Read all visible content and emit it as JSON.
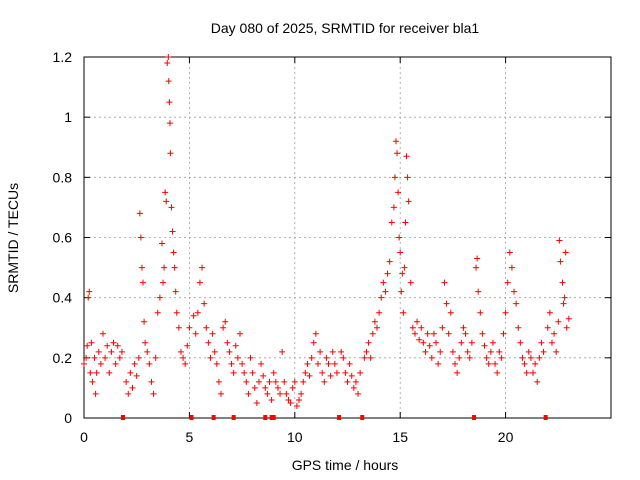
{
  "chart_data": {
    "type": "scatter",
    "title": "Day 080 of 2025, SRMTID for receiver bla1",
    "xlabel": "GPS time / hours",
    "ylabel": "SRMTID / TECUs",
    "xlim": [
      0,
      25
    ],
    "ylim": [
      0,
      1.2
    ],
    "x_ticks": [
      0,
      5,
      10,
      15,
      20
    ],
    "y_ticks": [
      0,
      0.2,
      0.4,
      0.6,
      0.8,
      1,
      1.2
    ],
    "x_tick_labels": [
      "0",
      "5",
      "10",
      "15",
      "20"
    ],
    "y_tick_labels": [
      "0",
      "0.2",
      "0.4",
      "0.6",
      "0.8",
      "1",
      "1.2"
    ],
    "grid": true,
    "marker": "+",
    "color": "#ff0000",
    "baseline_markers_x": [
      1.85,
      5.1,
      6.15,
      7.1,
      8.6,
      8.9,
      9.0,
      12.1,
      13.2,
      18.5,
      21.9
    ],
    "series": [
      {
        "name": "SRMTID",
        "points": [
          [
            0.0,
            0.18
          ],
          [
            0.1,
            0.2
          ],
          [
            0.15,
            0.24
          ],
          [
            0.2,
            0.4
          ],
          [
            0.25,
            0.42
          ],
          [
            0.3,
            0.15
          ],
          [
            0.35,
            0.25
          ],
          [
            0.4,
            0.12
          ],
          [
            0.5,
            0.2
          ],
          [
            0.55,
            0.08
          ],
          [
            0.6,
            0.15
          ],
          [
            0.7,
            0.22
          ],
          [
            0.8,
            0.18
          ],
          [
            0.9,
            0.28
          ],
          [
            1.0,
            0.2
          ],
          [
            1.1,
            0.24
          ],
          [
            1.2,
            0.15
          ],
          [
            1.3,
            0.22
          ],
          [
            1.4,
            0.25
          ],
          [
            1.5,
            0.18
          ],
          [
            1.6,
            0.24
          ],
          [
            1.7,
            0.2
          ],
          [
            1.8,
            0.22
          ],
          [
            2.0,
            0.12
          ],
          [
            2.1,
            0.08
          ],
          [
            2.2,
            0.15
          ],
          [
            2.3,
            0.1
          ],
          [
            2.4,
            0.18
          ],
          [
            2.5,
            0.14
          ],
          [
            2.6,
            0.2
          ],
          [
            2.65,
            0.68
          ],
          [
            2.7,
            0.6
          ],
          [
            2.75,
            0.5
          ],
          [
            2.8,
            0.45
          ],
          [
            2.85,
            0.32
          ],
          [
            2.9,
            0.25
          ],
          [
            3.0,
            0.22
          ],
          [
            3.1,
            0.18
          ],
          [
            3.2,
            0.12
          ],
          [
            3.3,
            0.08
          ],
          [
            3.4,
            0.2
          ],
          [
            3.5,
            0.35
          ],
          [
            3.6,
            0.4
          ],
          [
            3.7,
            0.58
          ],
          [
            3.75,
            0.45
          ],
          [
            3.8,
            0.5
          ],
          [
            3.85,
            0.75
          ],
          [
            3.9,
            0.72
          ],
          [
            3.95,
            1.18
          ],
          [
            4.0,
            1.2
          ],
          [
            4.02,
            1.12
          ],
          [
            4.05,
            1.05
          ],
          [
            4.08,
            0.98
          ],
          [
            4.1,
            0.88
          ],
          [
            4.15,
            0.7
          ],
          [
            4.2,
            0.62
          ],
          [
            4.25,
            0.55
          ],
          [
            4.3,
            0.5
          ],
          [
            4.35,
            0.42
          ],
          [
            4.4,
            0.35
          ],
          [
            4.5,
            0.3
          ],
          [
            4.6,
            0.22
          ],
          [
            4.7,
            0.2
          ],
          [
            4.8,
            0.18
          ],
          [
            4.9,
            0.24
          ],
          [
            5.0,
            0.3
          ],
          [
            5.2,
            0.34
          ],
          [
            5.3,
            0.28
          ],
          [
            5.4,
            0.35
          ],
          [
            5.5,
            0.45
          ],
          [
            5.6,
            0.5
          ],
          [
            5.7,
            0.38
          ],
          [
            5.8,
            0.3
          ],
          [
            5.9,
            0.25
          ],
          [
            6.0,
            0.2
          ],
          [
            6.1,
            0.28
          ],
          [
            6.2,
            0.22
          ],
          [
            6.3,
            0.18
          ],
          [
            6.4,
            0.12
          ],
          [
            6.5,
            0.08
          ],
          [
            6.6,
            0.3
          ],
          [
            6.7,
            0.32
          ],
          [
            6.8,
            0.25
          ],
          [
            6.9,
            0.22
          ],
          [
            7.0,
            0.18
          ],
          [
            7.1,
            0.15
          ],
          [
            7.2,
            0.24
          ],
          [
            7.3,
            0.2
          ],
          [
            7.4,
            0.28
          ],
          [
            7.5,
            0.18
          ],
          [
            7.6,
            0.15
          ],
          [
            7.7,
            0.12
          ],
          [
            7.8,
            0.08
          ],
          [
            7.9,
            0.2
          ],
          [
            8.0,
            0.15
          ],
          [
            8.1,
            0.1
          ],
          [
            8.2,
            0.05
          ],
          [
            8.3,
            0.12
          ],
          [
            8.4,
            0.18
          ],
          [
            8.5,
            0.14
          ],
          [
            8.6,
            0.1
          ],
          [
            8.7,
            0.08
          ],
          [
            8.8,
            0.12
          ],
          [
            8.9,
            0.06
          ],
          [
            9.0,
            0.15
          ],
          [
            9.1,
            0.12
          ],
          [
            9.2,
            0.1
          ],
          [
            9.3,
            0.08
          ],
          [
            9.4,
            0.22
          ],
          [
            9.5,
            0.12
          ],
          [
            9.6,
            0.08
          ],
          [
            9.7,
            0.06
          ],
          [
            9.8,
            0.05
          ],
          [
            9.9,
            0.1
          ],
          [
            10.0,
            0.12
          ],
          [
            10.1,
            0.04
          ],
          [
            10.2,
            0.06
          ],
          [
            10.3,
            0.08
          ],
          [
            10.4,
            0.12
          ],
          [
            10.5,
            0.15
          ],
          [
            10.6,
            0.18
          ],
          [
            10.7,
            0.14
          ],
          [
            10.8,
            0.2
          ],
          [
            10.9,
            0.25
          ],
          [
            11.0,
            0.28
          ],
          [
            11.1,
            0.18
          ],
          [
            11.2,
            0.22
          ],
          [
            11.3,
            0.15
          ],
          [
            11.4,
            0.12
          ],
          [
            11.5,
            0.2
          ],
          [
            11.6,
            0.18
          ],
          [
            11.7,
            0.14
          ],
          [
            11.8,
            0.22
          ],
          [
            11.9,
            0.18
          ],
          [
            12.0,
            0.15
          ],
          [
            12.2,
            0.22
          ],
          [
            12.3,
            0.2
          ],
          [
            12.4,
            0.15
          ],
          [
            12.5,
            0.12
          ],
          [
            12.6,
            0.18
          ],
          [
            12.7,
            0.14
          ],
          [
            12.8,
            0.1
          ],
          [
            12.9,
            0.12
          ],
          [
            13.0,
            0.08
          ],
          [
            13.1,
            0.15
          ],
          [
            13.3,
            0.2
          ],
          [
            13.4,
            0.22
          ],
          [
            13.5,
            0.25
          ],
          [
            13.6,
            0.2
          ],
          [
            13.7,
            0.28
          ],
          [
            13.8,
            0.32
          ],
          [
            13.9,
            0.3
          ],
          [
            14.0,
            0.35
          ],
          [
            14.1,
            0.4
          ],
          [
            14.2,
            0.45
          ],
          [
            14.3,
            0.42
          ],
          [
            14.4,
            0.48
          ],
          [
            14.5,
            0.52
          ],
          [
            14.6,
            0.65
          ],
          [
            14.7,
            0.7
          ],
          [
            14.75,
            0.8
          ],
          [
            14.8,
            0.92
          ],
          [
            14.85,
            0.88
          ],
          [
            14.9,
            0.75
          ],
          [
            14.95,
            0.6
          ],
          [
            15.0,
            0.55
          ],
          [
            15.05,
            0.42
          ],
          [
            15.1,
            0.48
          ],
          [
            15.15,
            0.35
          ],
          [
            15.2,
            0.5
          ],
          [
            15.25,
            0.65
          ],
          [
            15.3,
            0.87
          ],
          [
            15.35,
            0.8
          ],
          [
            15.4,
            0.72
          ],
          [
            15.5,
            0.45
          ],
          [
            15.6,
            0.3
          ],
          [
            15.7,
            0.28
          ],
          [
            15.8,
            0.32
          ],
          [
            15.9,
            0.26
          ],
          [
            16.0,
            0.3
          ],
          [
            16.1,
            0.25
          ],
          [
            16.2,
            0.22
          ],
          [
            16.3,
            0.28
          ],
          [
            16.4,
            0.24
          ],
          [
            16.5,
            0.2
          ],
          [
            16.6,
            0.28
          ],
          [
            16.7,
            0.25
          ],
          [
            16.8,
            0.18
          ],
          [
            16.9,
            0.22
          ],
          [
            17.0,
            0.3
          ],
          [
            17.1,
            0.45
          ],
          [
            17.2,
            0.38
          ],
          [
            17.3,
            0.28
          ],
          [
            17.4,
            0.35
          ],
          [
            17.5,
            0.22
          ],
          [
            17.6,
            0.18
          ],
          [
            17.7,
            0.15
          ],
          [
            17.8,
            0.2
          ],
          [
            17.9,
            0.25
          ],
          [
            18.0,
            0.3
          ],
          [
            18.1,
            0.28
          ],
          [
            18.2,
            0.22
          ],
          [
            18.3,
            0.2
          ],
          [
            18.4,
            0.25
          ],
          [
            18.6,
            0.5
          ],
          [
            18.65,
            0.53
          ],
          [
            18.7,
            0.42
          ],
          [
            18.8,
            0.35
          ],
          [
            18.9,
            0.28
          ],
          [
            19.0,
            0.24
          ],
          [
            19.1,
            0.2
          ],
          [
            19.2,
            0.18
          ],
          [
            19.3,
            0.22
          ],
          [
            19.4,
            0.25
          ],
          [
            19.5,
            0.18
          ],
          [
            19.6,
            0.15
          ],
          [
            19.7,
            0.22
          ],
          [
            19.8,
            0.2
          ],
          [
            19.9,
            0.28
          ],
          [
            20.0,
            0.35
          ],
          [
            20.1,
            0.45
          ],
          [
            20.2,
            0.55
          ],
          [
            20.3,
            0.5
          ],
          [
            20.4,
            0.42
          ],
          [
            20.5,
            0.38
          ],
          [
            20.6,
            0.3
          ],
          [
            20.7,
            0.25
          ],
          [
            20.8,
            0.2
          ],
          [
            20.9,
            0.18
          ],
          [
            21.0,
            0.15
          ],
          [
            21.1,
            0.22
          ],
          [
            21.2,
            0.2
          ],
          [
            21.3,
            0.15
          ],
          [
            21.4,
            0.18
          ],
          [
            21.5,
            0.12
          ],
          [
            21.6,
            0.2
          ],
          [
            21.7,
            0.25
          ],
          [
            21.8,
            0.22
          ],
          [
            22.0,
            0.3
          ],
          [
            22.1,
            0.35
          ],
          [
            22.2,
            0.25
          ],
          [
            22.3,
            0.28
          ],
          [
            22.4,
            0.22
          ],
          [
            22.5,
            0.32
          ],
          [
            22.55,
            0.59
          ],
          [
            22.6,
            0.52
          ],
          [
            22.7,
            0.45
          ],
          [
            22.75,
            0.38
          ],
          [
            22.8,
            0.4
          ],
          [
            22.85,
            0.55
          ],
          [
            22.9,
            0.3
          ],
          [
            23.0,
            0.33
          ]
        ]
      }
    ]
  }
}
